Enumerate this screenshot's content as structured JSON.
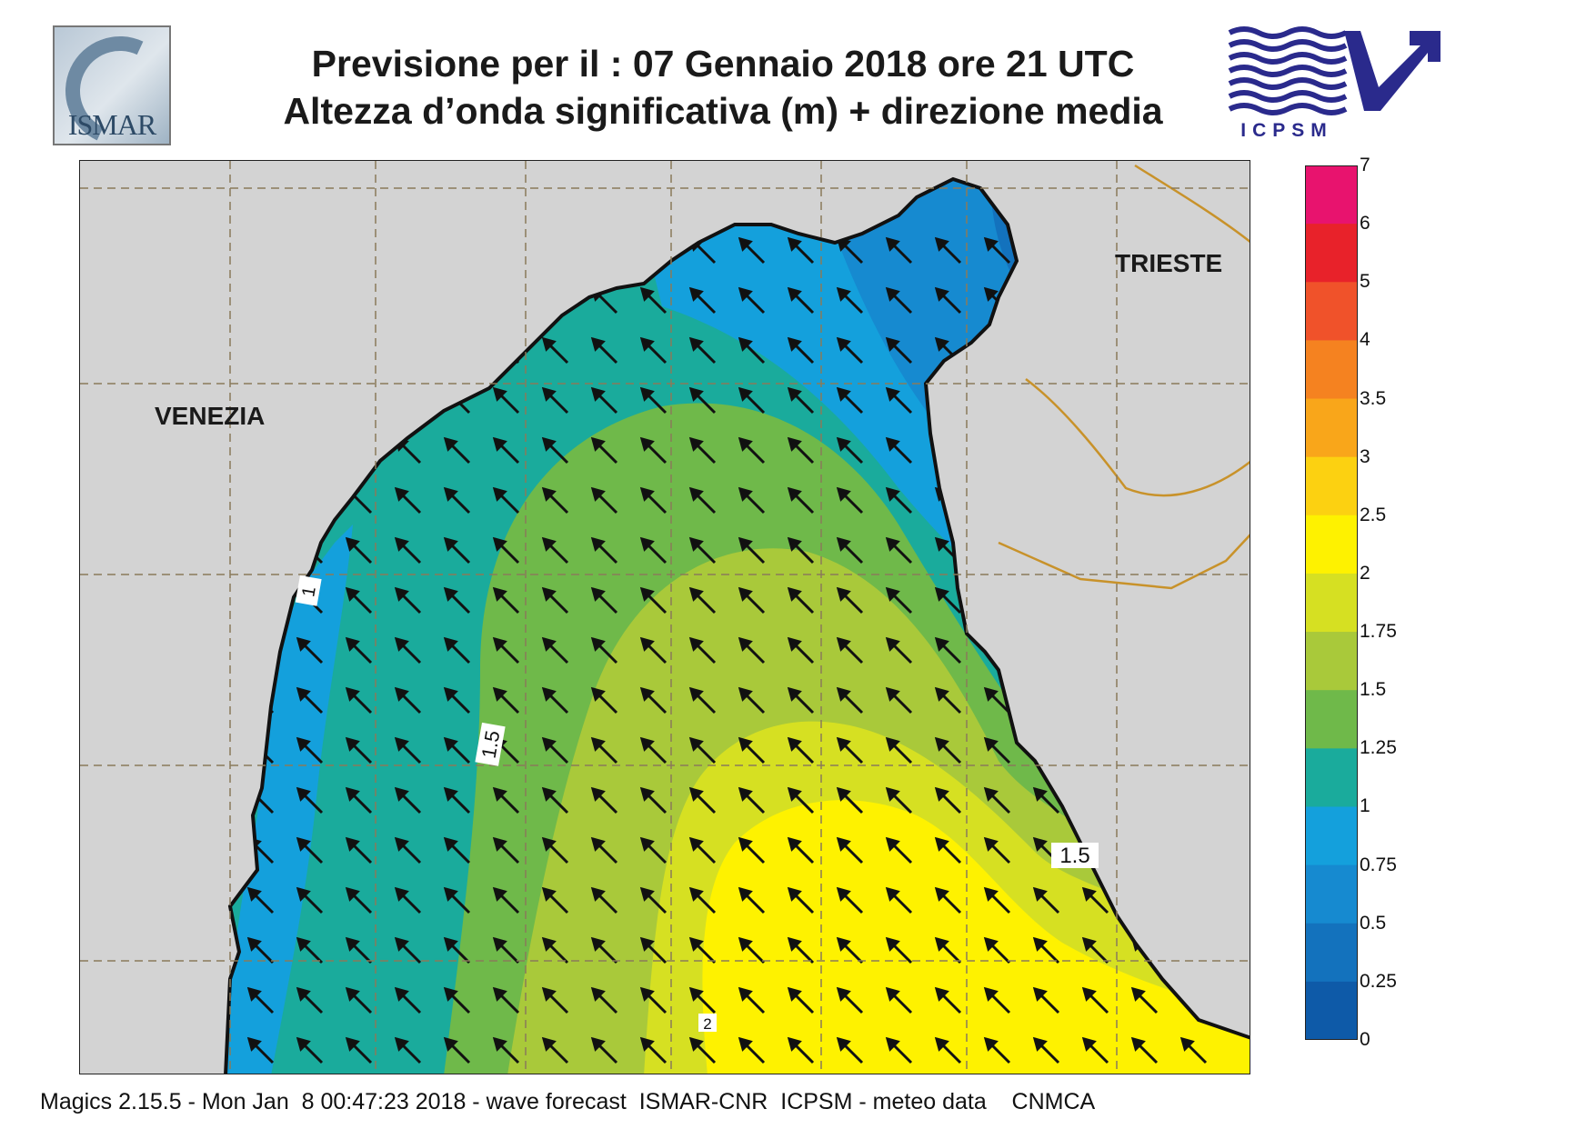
{
  "header": {
    "title_line1": "Previsione per il  :  07  Gennaio  2018   ore 21 UTC",
    "title_line2": "Altezza d’onda significativa (m) + direzione media"
  },
  "logos": {
    "left_text": "ISMAR",
    "right_text": "ICPSM"
  },
  "map": {
    "cities": [
      {
        "name": "VENEZIA"
      },
      {
        "name": "TRIESTE"
      }
    ],
    "contour_labels": [
      "1",
      "1.5",
      "1.5",
      "2"
    ],
    "variable": "significant wave height",
    "units": "m",
    "arrow_direction": "north-west"
  },
  "colorbar": {
    "ticks": [
      "7",
      "6",
      "5",
      "4",
      "3.5",
      "3",
      "2.5",
      "2",
      "1.75",
      "1.5",
      "1.25",
      "1",
      "0.75",
      "0.5",
      "0.25",
      "0"
    ],
    "colors": [
      "#e8136e",
      "#e8222a",
      "#f0522a",
      "#f58220",
      "#f9a61a",
      "#fcd111",
      "#fef200",
      "#d6e022",
      "#a9c93a",
      "#6fb94a",
      "#1aab9c",
      "#14a0dc",
      "#168ad0",
      "#1372bd",
      "#0e5aa8"
    ]
  },
  "footer": {
    "text": "Magics 2.15.5 - Mon Jan  8 00:47:23 2018 - wave forecast  ISMAR-CNR  ICPSM - meteo data    CNMCA"
  }
}
